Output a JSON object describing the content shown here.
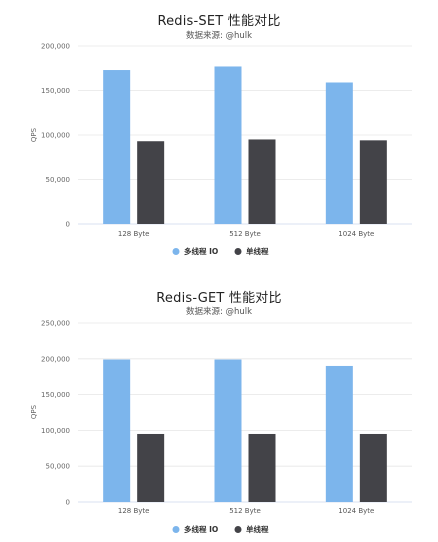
{
  "chart_data": [
    {
      "type": "bar",
      "title": "Redis-SET 性能对比",
      "subtitle": "数据来源: @hulk",
      "xlabel": "",
      "ylabel": "QPS",
      "categories": [
        "128 Byte",
        "512 Byte",
        "1024 Byte"
      ],
      "ylim": [
        0,
        200000
      ],
      "yticks": [
        0,
        50000,
        100000,
        150000,
        200000
      ],
      "ytick_labels": [
        "0",
        "50,000",
        "100,000",
        "150,000",
        "200,000"
      ],
      "grid": true,
      "legend": "bottom",
      "series": [
        {
          "name": "多线程 IO",
          "color": "#7cb5ec",
          "values": [
            173000,
            177000,
            159000
          ]
        },
        {
          "name": "单线程",
          "color": "#434348",
          "values": [
            93000,
            95000,
            94000
          ]
        }
      ]
    },
    {
      "type": "bar",
      "title": "Redis-GET 性能对比",
      "subtitle": "数据来源: @hulk",
      "xlabel": "",
      "ylabel": "QPS",
      "categories": [
        "128 Byte",
        "512 Byte",
        "1024 Byte"
      ],
      "ylim": [
        0,
        250000
      ],
      "yticks": [
        0,
        50000,
        100000,
        150000,
        200000,
        250000
      ],
      "ytick_labels": [
        "0",
        "50,000",
        "100,000",
        "150,000",
        "200,000",
        "250,000"
      ],
      "grid": true,
      "legend": "bottom",
      "series": [
        {
          "name": "多线程 IO",
          "color": "#7cb5ec",
          "values": [
            199000,
            199000,
            190000
          ]
        },
        {
          "name": "单线程",
          "color": "#434348",
          "values": [
            95000,
            95000,
            95000
          ]
        }
      ]
    }
  ]
}
